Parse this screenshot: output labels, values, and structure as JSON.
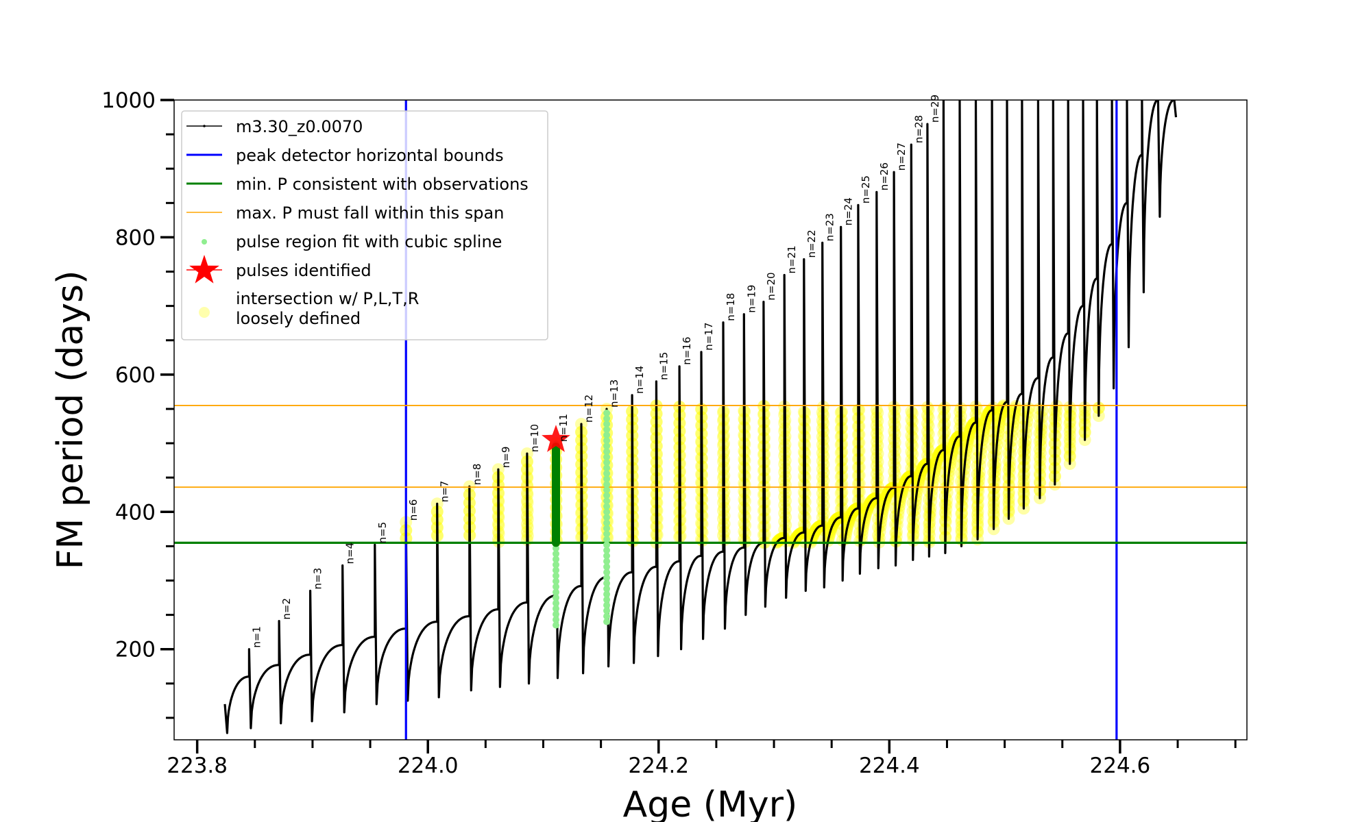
{
  "chart_data": {
    "type": "line",
    "xlabel": "Age (Myr)",
    "ylabel": "FM period (days)",
    "xlim": [
      223.78,
      224.71
    ],
    "ylim": [
      68,
      1000
    ],
    "x_ticks": [
      223.8,
      224.0,
      224.2,
      224.4,
      224.6
    ],
    "x_tick_labels": [
      "223.8",
      "224.0",
      "224.2",
      "224.4",
      "224.6"
    ],
    "y_ticks": [
      200,
      400,
      600,
      800,
      1000
    ],
    "y_tick_labels": [
      "200",
      "400",
      "600",
      "800",
      "1000"
    ],
    "grid": false,
    "legend_position": "top-left",
    "legend": [
      {
        "label": "m3.30_z0.0070",
        "color": "#000000",
        "kind": "line-marker"
      },
      {
        "label": "peak detector horizontal bounds",
        "color": "#0000ff",
        "kind": "line"
      },
      {
        "label": "min. P consistent with observations",
        "color": "#008000",
        "kind": "line"
      },
      {
        "label": "max. P must fall within this span",
        "color": "#ffa500",
        "kind": "thin-line"
      },
      {
        "label": "pulse region fit with cubic spline",
        "color": "#90ee90",
        "kind": "dot"
      },
      {
        "label": "pulses identified",
        "color": "#ff0000",
        "kind": "star"
      },
      {
        "label": "intersection w/ P,L,T,R",
        "label2": "loosely defined",
        "color": "#ffff99",
        "kind": "circle"
      }
    ],
    "series_start": {
      "age": [
        223.824,
        223.826
      ],
      "period": [
        120,
        78
      ]
    },
    "pulses": {
      "labels": [
        "n=1",
        "n=2",
        "n=3",
        "n=4",
        "n=5",
        "n=6",
        "n=7",
        "n=8",
        "n=9",
        "n=10",
        "n=11",
        "n=12",
        "n=13",
        "n=14",
        "n=15",
        "n=16",
        "n=17",
        "n=18",
        "n=19",
        "n=20",
        "n=21",
        "n=22",
        "n=23",
        "n=24",
        "n=25",
        "n=26",
        "n=27",
        "n=28",
        "n=29"
      ],
      "age": [
        223.845,
        223.871,
        223.898,
        223.926,
        223.954,
        223.981,
        224.008,
        224.036,
        224.061,
        224.086,
        224.111,
        224.133,
        224.155,
        224.177,
        224.198,
        224.218,
        224.237,
        224.256,
        224.274,
        224.291,
        224.309,
        224.326,
        224.342,
        224.358,
        224.373,
        224.389,
        224.404,
        224.419,
        224.433,
        224.447,
        224.461,
        224.475,
        224.489,
        224.502,
        224.515,
        224.529,
        224.542,
        224.555,
        224.568,
        224.58,
        224.593,
        224.606,
        224.619,
        224.633,
        224.647
      ],
      "pre": [
        160,
        177,
        192,
        206,
        218,
        230,
        240,
        248,
        258,
        268,
        278,
        292,
        305,
        312,
        320,
        328,
        336,
        342,
        348,
        355,
        362,
        370,
        380,
        392,
        405,
        420,
        435,
        452,
        470,
        490,
        510,
        530,
        548,
        560,
        572,
        595,
        625,
        660,
        700,
        740,
        790,
        850,
        920,
        1000,
        1000
      ],
      "peak": [
        200,
        241,
        285,
        322,
        352,
        385,
        412,
        437,
        462,
        485,
        500,
        528,
        550,
        570,
        590,
        612,
        633,
        676,
        688,
        706,
        745,
        768,
        792,
        815,
        847,
        866,
        895,
        935,
        965,
        1000,
        1000,
        1000,
        1000,
        1000,
        1000,
        1000,
        1000,
        1000,
        1000,
        1000,
        1000,
        1000,
        1000,
        1000,
        1000
      ],
      "min": [
        85,
        92,
        95,
        108,
        120,
        125,
        130,
        140,
        145,
        150,
        158,
        165,
        175,
        180,
        190,
        200,
        215,
        230,
        250,
        262,
        275,
        285,
        290,
        300,
        310,
        318,
        322,
        330,
        335,
        340,
        350,
        360,
        375,
        390,
        405,
        420,
        440,
        470,
        505,
        540,
        580,
        640,
        720,
        830,
        975
      ]
    },
    "peak_detector_bounds_age": [
      223.981,
      224.597
    ],
    "min_period_observed": 355,
    "max_period_span": [
      436,
      555
    ],
    "spline_fit_pulses": [
      {
        "pulse": "n=11",
        "age": 224.111,
        "from": 235,
        "to": 500
      },
      {
        "pulse": "n=13",
        "age": 224.155,
        "from": 240,
        "to": 550
      }
    ],
    "identified_pulse": {
      "pulse": "n=11",
      "age": 224.111,
      "period": 505
    },
    "colors": {
      "series": "#000000",
      "bounds": "#0000ff",
      "min_p": "#008000",
      "max_span": "#ffa500",
      "spline": "#90ee90",
      "spline_in_range": "#008000",
      "star": "#ff0000",
      "intersection": "#ffff00"
    }
  }
}
